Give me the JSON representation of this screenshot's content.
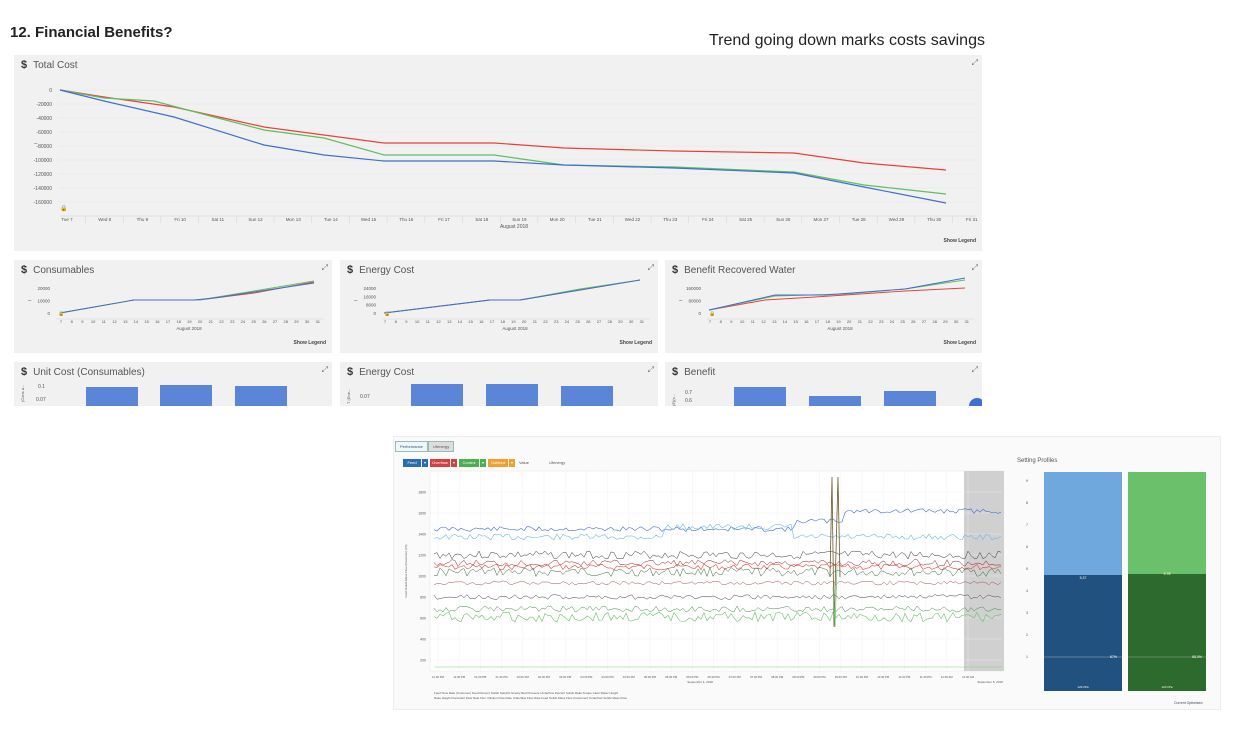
{
  "heading": "12. Financial Benefits?",
  "note": "Trend going down marks costs savings",
  "total_cost": {
    "currency_icon": "$",
    "title": "Total Cost",
    "y_ticks": [
      "0",
      "-20000",
      "-40000",
      "-60000",
      "-80000",
      "-100000",
      "-120000",
      "-140000",
      "-160000"
    ],
    "x_ticks": [
      "Tue 7",
      "Wed 8",
      "Thu 9",
      "Fri 10",
      "Sat 11",
      "Sun 12",
      "Mon 13",
      "Tue 14",
      "Wed 15",
      "Thu 16",
      "Fri 17",
      "Sat 18",
      "Sun 19",
      "Mon 20",
      "Tue 21",
      "Wed 22",
      "Thu 23",
      "Fri 24",
      "Sat 25",
      "Sun 26",
      "Mon 27",
      "Tue 28",
      "Wed 29",
      "Thu 30",
      "Fri 31"
    ],
    "x_title": "August 2018",
    "show_legend": "Show Legend"
  },
  "small_charts": [
    {
      "title": "Consumables",
      "y_ticks": [
        "20000",
        "10000",
        "0"
      ],
      "x_title": "August 2018",
      "show_legend": "Show Legend"
    },
    {
      "title": "Energy Cost",
      "y_ticks": [
        "24000",
        "16000",
        "8000",
        "0"
      ],
      "x_title": "August 2018",
      "show_legend": "Show Legend"
    },
    {
      "title": "Benefit Recovered Water",
      "y_ticks": [
        "160000",
        "80000",
        "0"
      ],
      "x_title": "August 2018",
      "show_legend": "Show Legend"
    }
  ],
  "day_ticks": [
    "7",
    "8",
    "9",
    "10",
    "11",
    "12",
    "13",
    "14",
    "15",
    "16",
    "17",
    "18",
    "19",
    "20",
    "21",
    "22",
    "23",
    "24",
    "25",
    "26",
    "27",
    "28",
    "29",
    "30",
    "31"
  ],
  "bottom_charts": [
    {
      "title": "Unit Cost (Consumables)",
      "y_ticks": [
        "0.1",
        "0.07"
      ],
      "y_label": "(Cons u..."
    },
    {
      "title": "Energy Cost",
      "y_ticks": [
        "0.07"
      ],
      "y_label": "T (Ene..."
    },
    {
      "title": "Benefit",
      "y_ticks": [
        "0.7",
        "0.6"
      ],
      "y_label": "(E)(s..."
    }
  ],
  "perf": {
    "tabs": [
      "Performance",
      "Ufenergy"
    ],
    "buttons": [
      "Feed",
      "Overflow",
      "Control",
      "Outfeed"
    ],
    "options": [
      "Value",
      "Ufenergy"
    ],
    "y_ticks": [
      "1800",
      "1600",
      "1400",
      "1200",
      "1000",
      "800",
      "600",
      "400",
      "200"
    ],
    "y_label": "Feed Solids Mass Flow (Customer) (t/h)",
    "x_ticks": [
      "12:00 PM",
      "12:30 PM",
      "01:00 PM",
      "01:30 PM",
      "02:00 PM",
      "02:30 PM",
      "03:00 PM",
      "03:30 PM",
      "04:00 PM",
      "04:30 PM",
      "05:00 PM",
      "05:30 PM",
      "06:00 PM",
      "06:30 PM",
      "07:00 PM",
      "07:30 PM",
      "08:00 PM",
      "08:30 PM",
      "09:00 PM",
      "09:30 PM",
      "10:00 PM",
      "10:30 PM",
      "11:00 PM",
      "11:30 PM",
      "12:00 AM",
      "12:30 AM"
    ],
    "date_left": "September 4, 2018",
    "date_right": "September 5, 2018",
    "legend1": "Feed Flow Rate (Customer)  Feed Percent Solids  Specific Gravity  Bed Pressure  Underflow Percent Solids  Rake Torque  Clear Water Height",
    "legend2": "Rake Height  Flocculant Flow Rate  Floc. Dilution Flow Rate  Underflow Flow Rate  Feed Solids Mass Flow (Customer)  Underflow Solids Mass Flow"
  },
  "setting_profiles": {
    "title": "Setting Profiles",
    "y_ticks": [
      "9",
      "8",
      "7",
      "6",
      "5",
      "4",
      "3",
      "2",
      "1"
    ],
    "blue_value": "5.37",
    "green_value": "5.78",
    "blue_pct": "67%",
    "green_pct": "68.0%",
    "blue_bottom": "120 t/Pa",
    "green_bottom": "120 t/Pa",
    "legend": "Current  Optimised"
  },
  "colors": {
    "red": "#e8413c",
    "green": "#5fbf5f",
    "blue": "#3f6fcf",
    "bar": "#5b85d6",
    "panel": "#f1f1f1"
  }
}
